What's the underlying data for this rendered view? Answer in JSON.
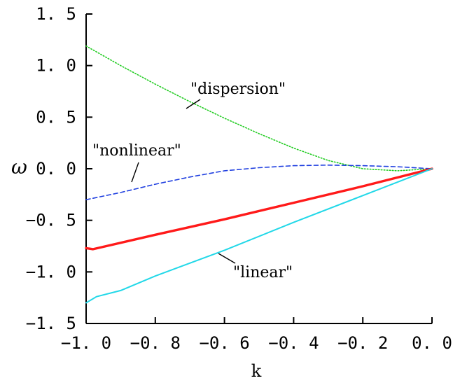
{
  "chart_data": {
    "type": "line",
    "title": "",
    "xlabel": "k",
    "ylabel": "ω",
    "xlim": [
      -1.0,
      0.0
    ],
    "ylim": [
      -1.5,
      1.5
    ],
    "x_ticks": [
      -1.0,
      -0.8,
      -0.6,
      -0.4,
      -0.2,
      0.0
    ],
    "x_tick_labels": [
      "−1. 0",
      "−0. 8",
      "−0. 6",
      "−0. 4",
      "−0. 2",
      "0. 0"
    ],
    "y_ticks": [
      1.5,
      1.0,
      0.5,
      0.0,
      -0.5,
      -1.0,
      -1.5
    ],
    "y_tick_labels": [
      "1. 5",
      "1. 0",
      "0. 5",
      "0. 0",
      "−0. 5",
      "−1. 0",
      "−1. 5"
    ],
    "grid": false,
    "legend": "none",
    "series": [
      {
        "name": "\"dispersion\"",
        "style": "dotted",
        "color": "#22cc22",
        "x": [
          -1.0,
          -0.9,
          -0.8,
          -0.7,
          -0.6,
          -0.5,
          -0.4,
          -0.3,
          -0.25,
          -0.2,
          -0.1,
          0.0
        ],
        "y": [
          1.19,
          1.0,
          0.82,
          0.65,
          0.49,
          0.34,
          0.2,
          0.08,
          0.04,
          0.0,
          -0.02,
          0.0
        ]
      },
      {
        "name": "\"nonlinear\"",
        "style": "dashed",
        "color": "#1f3fe0",
        "x": [
          -1.0,
          -0.9,
          -0.8,
          -0.7,
          -0.6,
          -0.5,
          -0.4,
          -0.3,
          -0.2,
          -0.1,
          0.0
        ],
        "y": [
          -0.3,
          -0.23,
          -0.15,
          -0.08,
          -0.02,
          0.01,
          0.03,
          0.035,
          0.03,
          0.02,
          0.0
        ]
      },
      {
        "name": "",
        "style": "solid",
        "color": "#ff1a1a",
        "x": [
          -1.0,
          -0.98,
          -0.8,
          -0.6,
          -0.4,
          -0.2,
          0.0
        ],
        "y": [
          -0.77,
          -0.78,
          -0.64,
          -0.49,
          -0.33,
          -0.17,
          0.0
        ]
      },
      {
        "name": "\"linear\"",
        "style": "solid",
        "color": "#22d8e8",
        "x": [
          -1.0,
          -0.98,
          -0.97,
          -0.9,
          -0.8,
          -0.6,
          -0.4,
          -0.2,
          0.0
        ],
        "y": [
          -1.3,
          -1.26,
          -1.24,
          -1.18,
          -1.04,
          -0.79,
          -0.52,
          -0.26,
          0.0
        ]
      }
    ],
    "annotations": [
      {
        "text": "\"dispersion\"",
        "series": 0
      },
      {
        "text": "\"nonlinear\"",
        "series": 1
      },
      {
        "text": "\"linear\"",
        "series": 3
      }
    ]
  }
}
